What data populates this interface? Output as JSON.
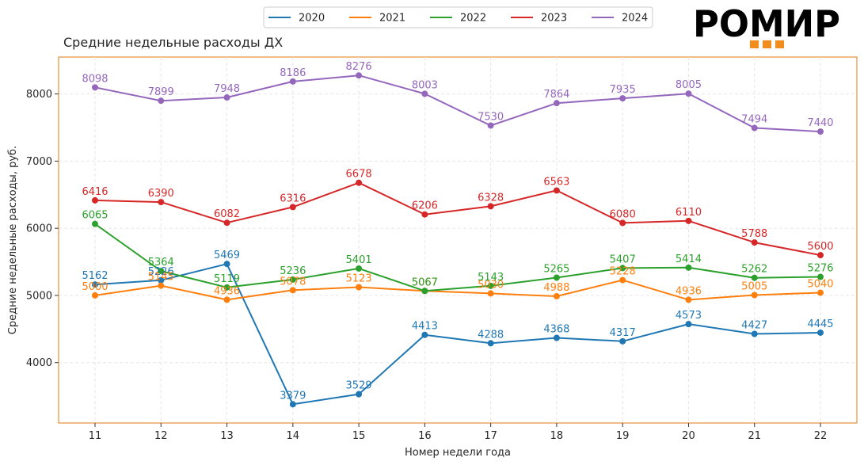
{
  "chart_data": {
    "type": "line",
    "title": "Средние недельные расходы ДХ",
    "xlabel": "Номер недели года",
    "ylabel": "Средние недельные расходы, руб.",
    "x": [
      11,
      12,
      13,
      14,
      15,
      16,
      17,
      18,
      19,
      20,
      21,
      22
    ],
    "yticks": [
      4000,
      5000,
      6000,
      7000,
      8000
    ],
    "ylim": [
      3100,
      8550
    ],
    "grid": true,
    "legend_position": "top-center",
    "series": [
      {
        "name": "2020",
        "color": "#1f77b4",
        "values": [
          5162,
          5226,
          5469,
          3379,
          3529,
          4413,
          4288,
          4368,
          4317,
          4573,
          4427,
          4445
        ]
      },
      {
        "name": "2021",
        "color": "#ff7f0e",
        "values": [
          5000,
          5145,
          4936,
          5078,
          5123,
          5067,
          5030,
          4988,
          5228,
          4936,
          5005,
          5040
        ]
      },
      {
        "name": "2022",
        "color": "#2ca02c",
        "values": [
          6065,
          5364,
          5119,
          5236,
          5401,
          5067,
          5143,
          5265,
          5407,
          5414,
          5262,
          5276
        ]
      },
      {
        "name": "2023",
        "color": "#d62728",
        "values": [
          6416,
          6390,
          6082,
          6316,
          6678,
          6206,
          6328,
          6563,
          6080,
          6110,
          5788,
          5600
        ]
      },
      {
        "name": "2024",
        "color": "#9467bd",
        "values": [
          8098,
          7899,
          7948,
          8186,
          8276,
          8003,
          7530,
          7864,
          7935,
          8005,
          7494,
          7440
        ]
      }
    ]
  },
  "logo": {
    "text": "РОМИР",
    "accent_color": "#f28c1c"
  }
}
